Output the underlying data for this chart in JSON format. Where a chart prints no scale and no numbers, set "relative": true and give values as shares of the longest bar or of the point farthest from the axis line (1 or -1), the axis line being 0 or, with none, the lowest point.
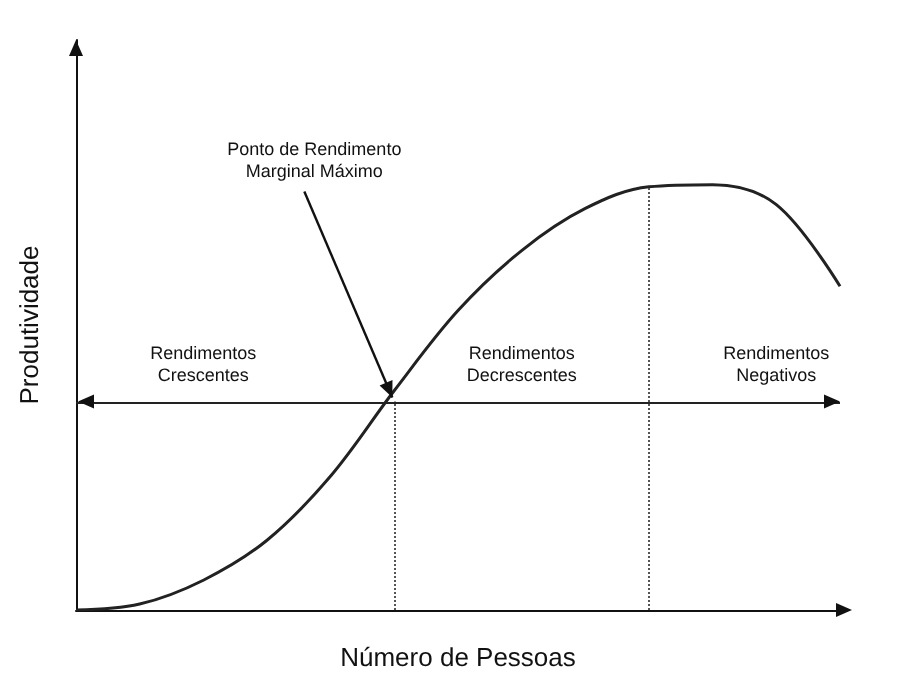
{
  "chart_data": {
    "type": "line",
    "relative": true,
    "xlabel": "Número de Pessoas",
    "ylabel": "Produtividade",
    "categories": [
      null,
      null,
      null,
      null,
      null,
      null,
      null,
      null,
      null,
      null,
      null,
      null,
      null
    ],
    "series": [
      {
        "color": "#222222",
        "values": [
          0,
          0.014,
          0.07,
          0.164,
          0.315,
          0.516,
          0.704,
          0.845,
          0.944,
          0.995,
          1,
          0.953,
          0.761
        ]
      }
    ],
    "marker": "none",
    "grid": false,
    "ref_lines": [
      {
        "axis": "y",
        "value": 0.49,
        "color": "#222222",
        "line_style": "solid"
      }
    ],
    "annotations": [
      "Ponto de Rendimento\nMarginal Máximo",
      "Rendimentos\nCrescentes",
      "Rendimentos\nDecrescentes",
      "Rendimentos\nNegativos"
    ]
  }
}
